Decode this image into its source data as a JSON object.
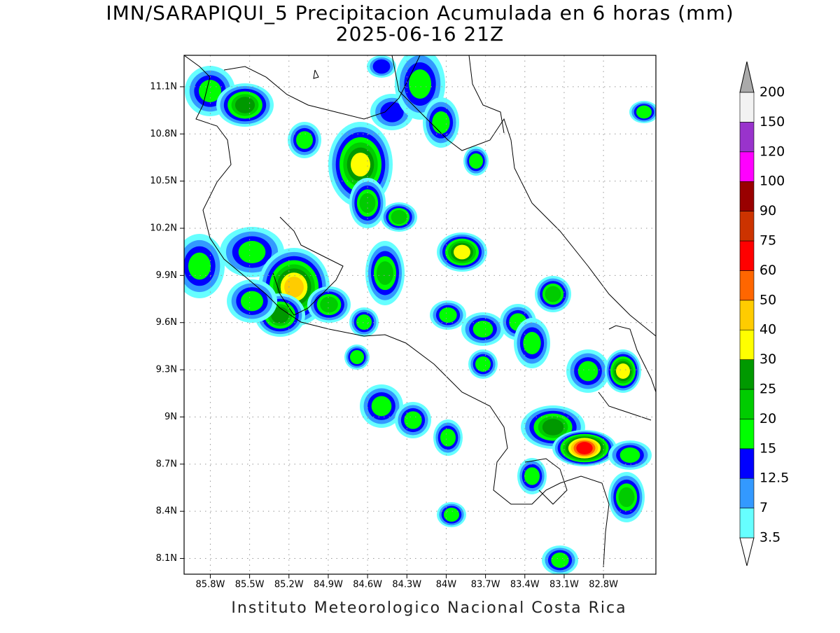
{
  "map": {
    "title": "IMN/SARAPIQUI_5 Precipitacion Acumulada en 6 horas (mm)",
    "subtitle": "2025-06-16 21Z",
    "footer": "Instituto Meteorologico Nacional Costa Rica",
    "xlim": [
      -86.0,
      -82.4
    ],
    "ylim": [
      8.0,
      11.3
    ],
    "xticks": [
      {
        "value": -85.8,
        "label": "85.8W"
      },
      {
        "value": -85.5,
        "label": "85.5W"
      },
      {
        "value": -85.2,
        "label": "85.2W"
      },
      {
        "value": -84.9,
        "label": "84.9W"
      },
      {
        "value": -84.6,
        "label": "84.6W"
      },
      {
        "value": -84.3,
        "label": "84.3W"
      },
      {
        "value": -84.0,
        "label": "84W"
      },
      {
        "value": -83.7,
        "label": "83.7W"
      },
      {
        "value": -83.4,
        "label": "83.4W"
      },
      {
        "value": -83.1,
        "label": "83.1W"
      },
      {
        "value": -82.8,
        "label": "82.8W"
      }
    ],
    "yticks": [
      {
        "value": 8.1,
        "label": "8.1N"
      },
      {
        "value": 8.4,
        "label": "8.4N"
      },
      {
        "value": 8.7,
        "label": "8.7N"
      },
      {
        "value": 9.0,
        "label": "9N"
      },
      {
        "value": 9.3,
        "label": "9.3N"
      },
      {
        "value": 9.6,
        "label": "9.6N"
      },
      {
        "value": 9.9,
        "label": "9.9N"
      },
      {
        "value": 10.2,
        "label": "10.2N"
      },
      {
        "value": 10.5,
        "label": "10.5N"
      },
      {
        "value": 10.8,
        "label": "10.8N"
      },
      {
        "value": 11.1,
        "label": "11.1N"
      }
    ],
    "grid": true,
    "colorbar": {
      "levels": [
        3.5,
        7,
        12.5,
        15,
        20,
        25,
        30,
        40,
        50,
        60,
        75,
        90,
        100,
        120,
        150,
        200
      ],
      "colors": [
        "#66ffff",
        "#3399ff",
        "#0000ff",
        "#00ff00",
        "#00cc00",
        "#009900",
        "#ffff00",
        "#ffcc00",
        "#ff6600",
        "#ff0000",
        "#cc3300",
        "#990000",
        "#ff00ff",
        "#9933cc",
        "#f2f2f2"
      ],
      "under_color": "#ffffff",
      "over_color": "#aaaaaa"
    }
  }
}
